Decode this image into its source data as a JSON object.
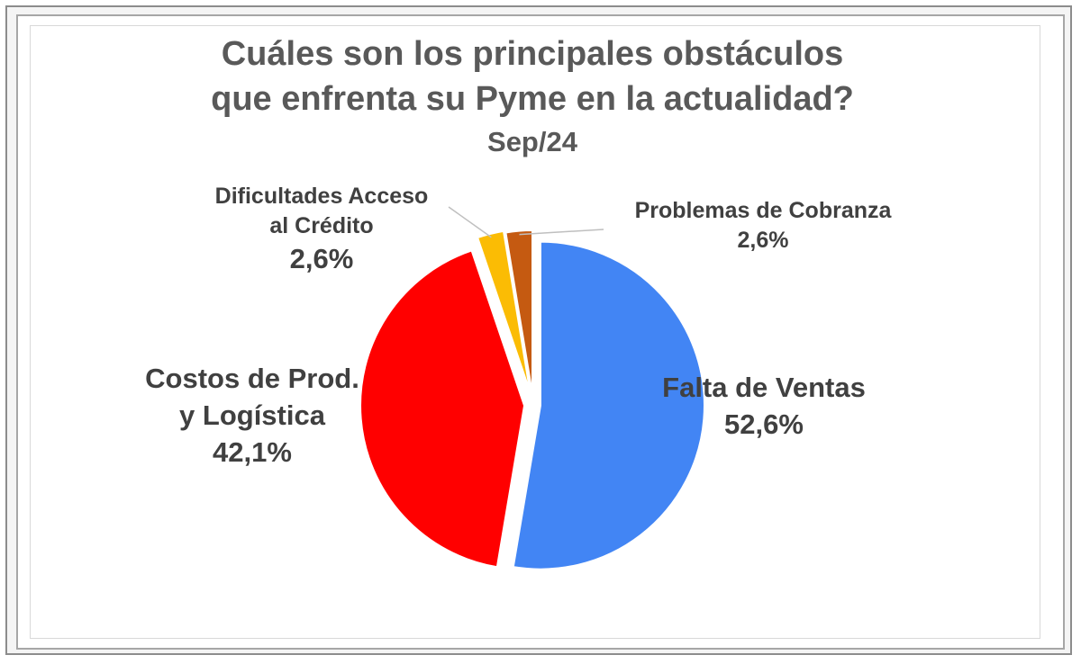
{
  "chart_data": {
    "type": "pie",
    "title_lines": [
      "Cuáles son los principales obstáculos",
      "que enfrenta su Pyme en la actualidad?"
    ],
    "subtitle": "Sep/24",
    "slices": [
      {
        "label_lines": [
          "Falta de Ventas"
        ],
        "value": 52.6,
        "value_label": "52,6%",
        "color": "#4285f4"
      },
      {
        "label_lines": [
          "Costos de Prod.",
          "y Logística"
        ],
        "value": 42.1,
        "value_label": "42,1%",
        "color": "#ff0000"
      },
      {
        "label_lines": [
          "Dificultades Acceso",
          "al Crédito"
        ],
        "value": 2.6,
        "value_label": "2,6%",
        "color": "#fbbc04"
      },
      {
        "label_lines": [
          "Problemas de Cobranza"
        ],
        "value": 2.6,
        "value_label": "2,6%",
        "color": "#c55a11"
      }
    ]
  }
}
